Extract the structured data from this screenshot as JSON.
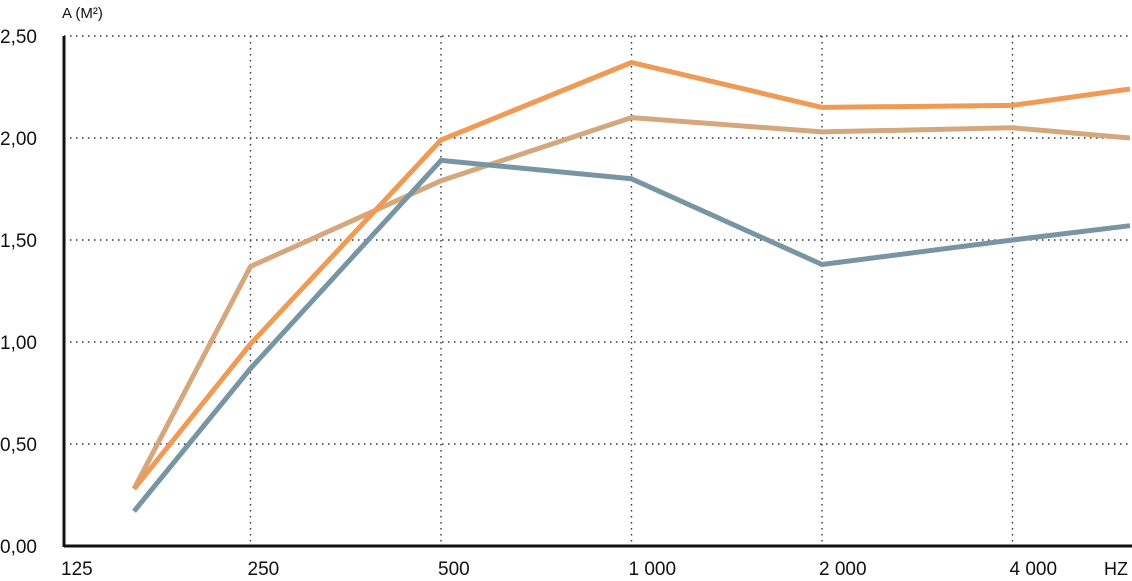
{
  "chart_data": {
    "type": "line",
    "title": "",
    "ylabel": "A (M²)",
    "xunit": "HZ",
    "categories": [
      "125",
      "250",
      "500",
      "1 000",
      "2 000",
      "4 000"
    ],
    "y_tick_labels": [
      "0,00",
      "0,50",
      "1,00",
      "1,50",
      "2,00",
      "2,50"
    ],
    "y_ticks": [
      0,
      0.5,
      1.0,
      1.5,
      2.0,
      2.5
    ],
    "ylim": [
      0,
      2.5
    ],
    "grid": true,
    "series": [
      {
        "color": "#ef9a55",
        "points": [
          [
            125,
            0.28
          ],
          [
            250,
            0.99
          ],
          [
            500,
            1.99
          ],
          [
            1000,
            2.37
          ],
          [
            2000,
            2.15
          ],
          [
            4000,
            2.16
          ],
          [
            6000,
            2.24
          ]
        ]
      },
      {
        "color": "#d4a77d",
        "points": [
          [
            125,
            0.28
          ],
          [
            250,
            1.37
          ],
          [
            500,
            1.79
          ],
          [
            1000,
            2.1
          ],
          [
            2000,
            2.03
          ],
          [
            4000,
            2.05
          ],
          [
            6000,
            2.0
          ]
        ]
      },
      {
        "color": "#7895a3",
        "points": [
          [
            125,
            0.17
          ],
          [
            250,
            0.87
          ],
          [
            500,
            1.89
          ],
          [
            1000,
            1.8
          ],
          [
            2000,
            1.38
          ],
          [
            4000,
            1.5
          ],
          [
            6000,
            1.57
          ]
        ]
      }
    ]
  }
}
